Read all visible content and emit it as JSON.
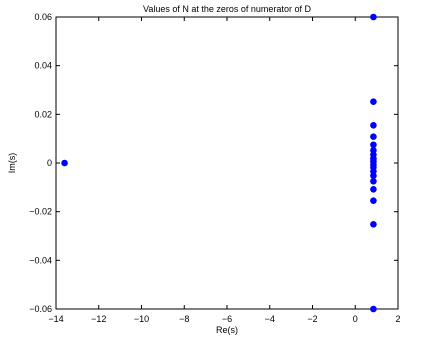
{
  "chart_data": {
    "type": "scatter",
    "title": "Values of N at the zeros of numerator of D",
    "xlabel": "Re(s)",
    "ylabel": "Im(s)",
    "xlim": [
      -14,
      2
    ],
    "ylim": [
      -0.06,
      0.06
    ],
    "xticks": [
      -14,
      -12,
      -10,
      -8,
      -6,
      -4,
      -2,
      0,
      2
    ],
    "yticks": [
      -0.06,
      -0.04,
      -0.02,
      0,
      0.02,
      0.04,
      0.06
    ],
    "xtick_labels": [
      "−14",
      "−12",
      "−10",
      "−8",
      "−6",
      "−4",
      "−2",
      "0",
      "2"
    ],
    "ytick_labels": [
      "−0.06",
      "−0.04",
      "−0.02",
      "0",
      "0.02",
      "0.04",
      "0.06"
    ],
    "grid": false,
    "marker_color": "#0000ff",
    "points": [
      {
        "x": -13.6,
        "y": 0.0
      },
      {
        "x": 0.85,
        "y": 0.06
      },
      {
        "x": 0.85,
        "y": 0.0252
      },
      {
        "x": 0.85,
        "y": 0.0155
      },
      {
        "x": 0.85,
        "y": 0.0108
      },
      {
        "x": 0.85,
        "y": 0.0075
      },
      {
        "x": 0.85,
        "y": 0.0052
      },
      {
        "x": 0.85,
        "y": 0.0034
      },
      {
        "x": 0.85,
        "y": 0.0018
      },
      {
        "x": 0.85,
        "y": 0.0006
      },
      {
        "x": 0.85,
        "y": -0.0006
      },
      {
        "x": 0.85,
        "y": -0.0018
      },
      {
        "x": 0.85,
        "y": -0.0034
      },
      {
        "x": 0.85,
        "y": -0.0052
      },
      {
        "x": 0.85,
        "y": -0.0075
      },
      {
        "x": 0.85,
        "y": -0.0108
      },
      {
        "x": 0.85,
        "y": -0.0155
      },
      {
        "x": 0.85,
        "y": -0.0252
      },
      {
        "x": 0.85,
        "y": -0.06
      }
    ]
  }
}
